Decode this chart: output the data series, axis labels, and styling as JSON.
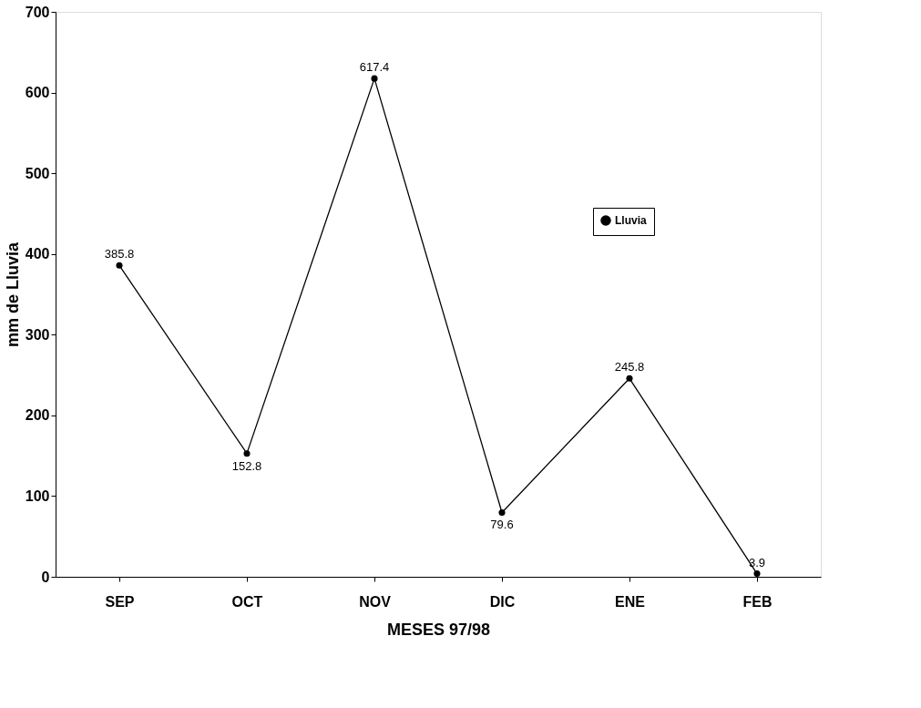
{
  "chart_data": {
    "type": "line",
    "xlabel": "MESES 97/98",
    "ylabel": "mm de Lluvia",
    "categories": [
      "SEP",
      "OCT",
      "NOV",
      "DIC",
      "ENE",
      "FEB"
    ],
    "series": [
      {
        "name": "Lluvia",
        "color": "#000000",
        "values": [
          385.8,
          152.8,
          617.4,
          79.6,
          245.8,
          3.9
        ]
      }
    ],
    "ylim": [
      0,
      700
    ],
    "yticks": [
      0,
      100,
      200,
      300,
      400,
      500,
      600,
      700
    ],
    "data_labels": true,
    "legend": "right",
    "marker": "circle",
    "line_style": "solid",
    "grid": false
  }
}
